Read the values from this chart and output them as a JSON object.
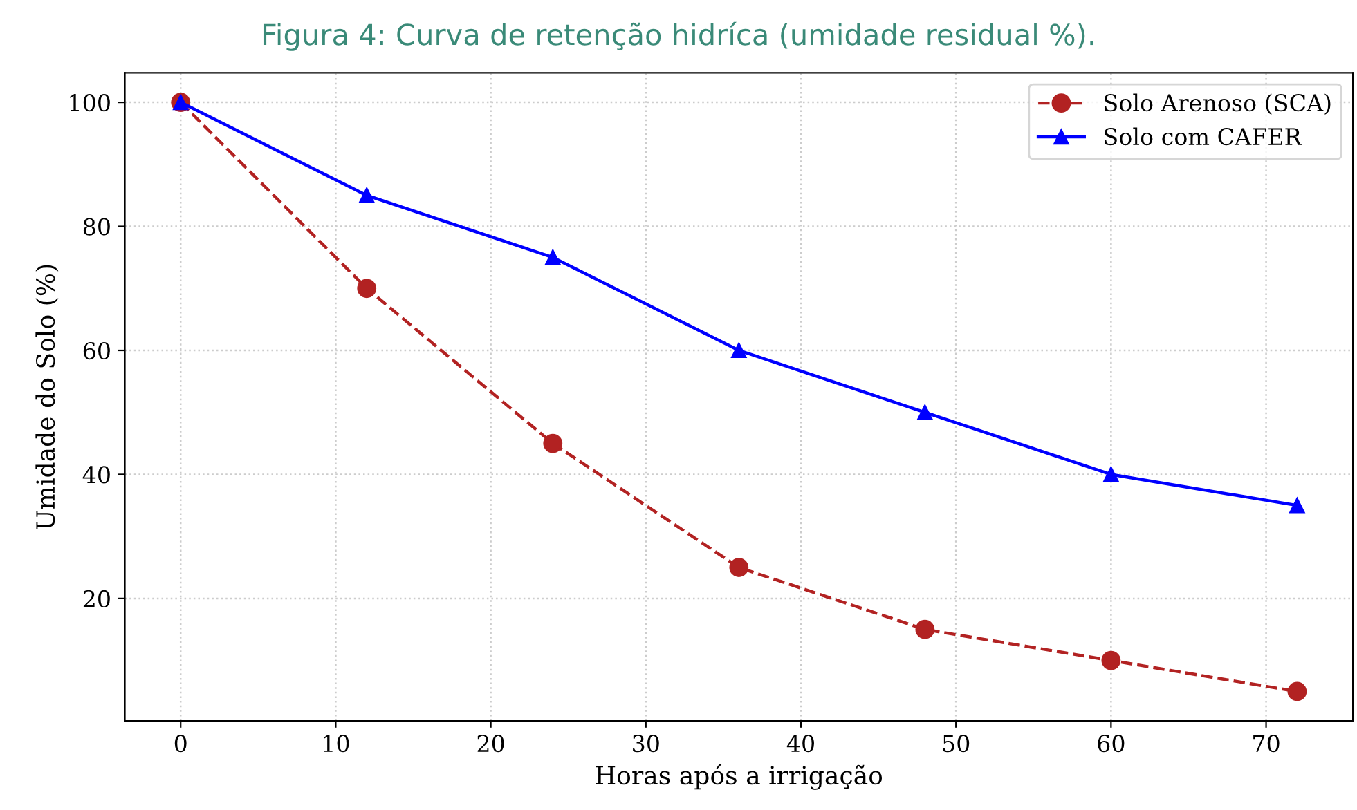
{
  "chart_data": {
    "type": "line",
    "title": "Figura 4: Curva de retenção hidríca (umidade residual %).",
    "xlabel": "Horas após a irrigação",
    "ylabel": "Umidade do Solo (%)",
    "x": [
      0,
      12,
      24,
      36,
      48,
      60,
      72
    ],
    "series": [
      {
        "name": "Solo Arenoso (SCA)",
        "color": "#b22222",
        "values": [
          100,
          70,
          45,
          25,
          15,
          10,
          5
        ],
        "marker": "circle",
        "line_style": "dashed"
      },
      {
        "name": "Solo com CAFER",
        "color": "#0000ff",
        "values": [
          100,
          85,
          75,
          60,
          50,
          40,
          35
        ],
        "marker": "triangle",
        "line_style": "solid"
      }
    ],
    "xlim": [
      -3.6,
      75.6
    ],
    "ylim": [
      0.25,
      104.75
    ],
    "xticks": [
      0,
      10,
      20,
      30,
      40,
      50,
      60,
      70
    ],
    "yticks": [
      20,
      40,
      60,
      80,
      100
    ],
    "grid": true,
    "legend": "top right"
  }
}
